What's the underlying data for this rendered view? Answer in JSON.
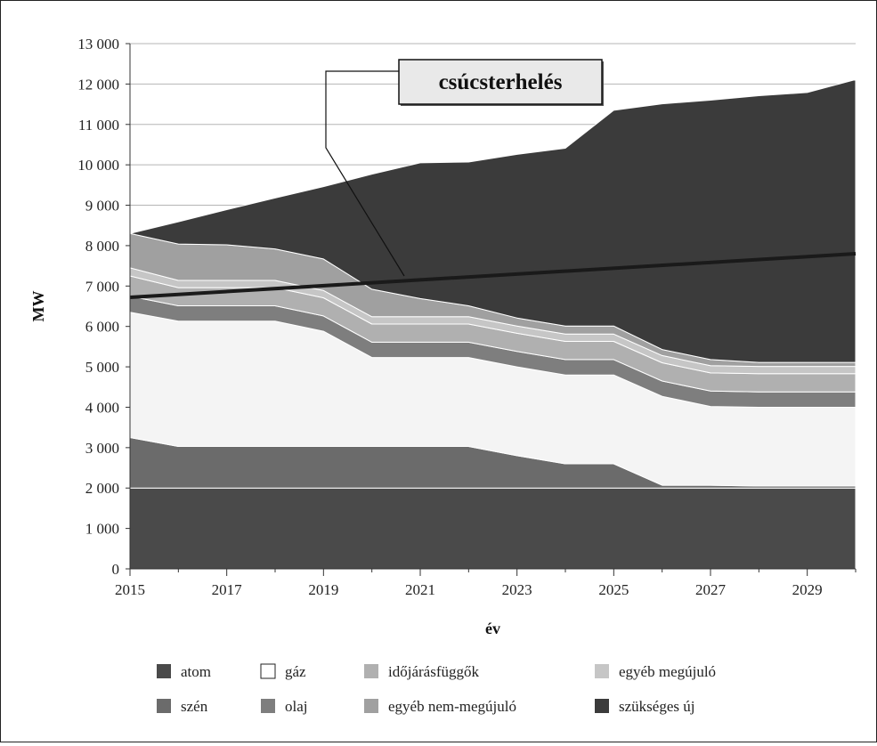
{
  "chart_data": {
    "type": "area",
    "stacked": true,
    "xlabel": "év",
    "ylabel": "MW",
    "xlim": [
      2015,
      2030
    ],
    "ylim": [
      0,
      13000
    ],
    "x_ticks": [
      2015,
      2017,
      2019,
      2021,
      2023,
      2025,
      2027,
      2029
    ],
    "y_ticks": [
      0,
      1000,
      2000,
      3000,
      4000,
      5000,
      6000,
      7000,
      8000,
      9000,
      10000,
      11000,
      12000,
      13000
    ],
    "y_tick_labels": [
      "0",
      "1 000",
      "2 000",
      "3 000",
      "4 000",
      "5 000",
      "6 000",
      "7 000",
      "8 000",
      "9 000",
      "10 000",
      "11 000",
      "12 000",
      "13 000"
    ],
    "x": [
      2015,
      2016,
      2017,
      2018,
      2019,
      2020,
      2021,
      2022,
      2023,
      2024,
      2025,
      2026,
      2027,
      2028,
      2029,
      2030
    ],
    "grid": true,
    "legend_position": "bottom",
    "series": [
      {
        "name": "atom",
        "color": "#4a4a4a",
        "values": [
          2000,
          2000,
          2000,
          2000,
          2000,
          2000,
          2000,
          2000,
          2000,
          2000,
          2000,
          2000,
          2000,
          2000,
          2000,
          2000
        ]
      },
      {
        "name": "szén",
        "color": "#6b6b6b",
        "values": [
          1250,
          1030,
          1030,
          1030,
          1030,
          1030,
          1030,
          1030,
          800,
          600,
          600,
          70,
          70,
          50,
          50,
          50
        ]
      },
      {
        "name": "gáz",
        "color": "#f4f4f4",
        "values": [
          3100,
          3100,
          3100,
          3100,
          2850,
          2200,
          2200,
          2200,
          2200,
          2200,
          2200,
          2200,
          1950,
          1950,
          1950,
          1950
        ]
      },
      {
        "name": "olaj",
        "color": "#7e7e7e",
        "values": [
          400,
          380,
          380,
          380,
          380,
          380,
          380,
          380,
          380,
          380,
          380,
          380,
          380,
          380,
          380,
          380
        ]
      },
      {
        "name": "időjárásfüggők",
        "color": "#b0b0b0",
        "values": [
          500,
          450,
          450,
          450,
          450,
          450,
          450,
          450,
          450,
          450,
          450,
          450,
          450,
          450,
          450,
          450
        ]
      },
      {
        "name": "egyéb megújuló",
        "color": "#c6c6c6",
        "values": [
          200,
          180,
          180,
          180,
          180,
          180,
          180,
          180,
          180,
          180,
          180,
          180,
          180,
          180,
          180,
          180
        ]
      },
      {
        "name": "egyéb nem-megújuló",
        "color": "#a0a0a0",
        "values": [
          850,
          900,
          880,
          780,
          780,
          680,
          450,
          270,
          200,
          200,
          200,
          150,
          150,
          100,
          100,
          100
        ]
      },
      {
        "name": "szükséges új",
        "color": "#3b3b3b",
        "values": [
          0,
          550,
          870,
          1260,
          1790,
          2850,
          3360,
          3560,
          4050,
          4400,
          5340,
          6080,
          6420,
          6600,
          6680,
          7000
        ]
      }
    ],
    "line_series": [
      {
        "name": "csúcsterhelés",
        "color": "#1a1a1a",
        "x": [
          2015,
          2030
        ],
        "values": [
          6720,
          7800
        ]
      }
    ],
    "annotations": [
      {
        "text": "csúcsterhelés"
      }
    ],
    "legend": [
      [
        "atom",
        "gáz",
        "időjárásfüggők",
        "egyéb megújuló"
      ],
      [
        "szén",
        "olaj",
        "egyéb nem-megújuló",
        "szükséges új"
      ]
    ]
  }
}
